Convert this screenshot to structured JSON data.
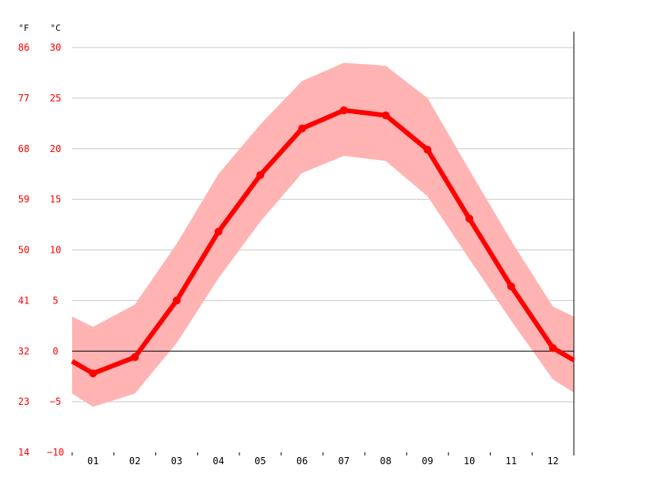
{
  "chart_data": {
    "type": "line",
    "x": [
      "01",
      "02",
      "03",
      "04",
      "05",
      "06",
      "07",
      "08",
      "09",
      "10",
      "11",
      "12"
    ],
    "series": [
      {
        "values": [
          -2.2,
          -0.6,
          5.0,
          11.8,
          17.4,
          22.0,
          23.8,
          23.3,
          19.9,
          13.1,
          6.4,
          0.3
        ],
        "low": [
          -5.5,
          -4.2,
          0.8,
          7.2,
          12.8,
          17.6,
          19.3,
          18.8,
          15.3,
          9.1,
          3.0,
          -2.8
        ],
        "high": [
          2.4,
          4.6,
          10.6,
          17.5,
          22.4,
          26.7,
          28.5,
          28.2,
          25.0,
          17.9,
          10.9,
          4.4
        ]
      }
    ],
    "edges": {
      "before": {
        "value": -1.0,
        "low": -4.2,
        "high": 3.4
      },
      "after": {
        "value": -0.9,
        "low": -4.1,
        "high": 3.4
      }
    },
    "ylim": [
      -10,
      30
    ],
    "yticks_c": [
      "30",
      "25",
      "20",
      "15",
      "10",
      "5",
      "0",
      "−5",
      "−10"
    ],
    "yticks_f": [
      "86",
      "77",
      "68",
      "59",
      "50",
      "41",
      "32",
      "23",
      "14"
    ],
    "unit_c": "°C",
    "unit_f": "°F",
    "grid": true,
    "colors": {
      "line": "#ff0000",
      "band": "#ffb3b3",
      "grid": "#c8c8c8",
      "axis": "#000000",
      "ylabel": "#ff0000",
      "xlabel": "#000000"
    }
  }
}
